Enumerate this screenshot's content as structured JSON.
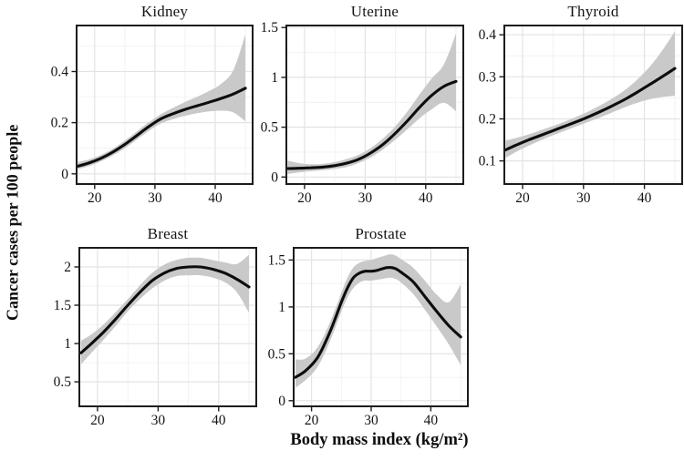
{
  "figure": {
    "ylabel": "Cancer cases per 100 people",
    "xlabel": "Body mass index (kg/m²)"
  },
  "chart_data": {
    "type": "line",
    "description": "Smoothed cancer incidence curves with shaded 95% confidence bands, one panel per cancer site",
    "xlabel": "Body mass index (kg/m²)",
    "ylabel": "Cancer cases per 100 people",
    "grid": true,
    "legend": "none",
    "colors": {
      "line": "#0d0d0d",
      "band": "#c9c9c9",
      "grid_major": "#e3e3e3",
      "grid_minor": "#efefef",
      "border": "#1c1c1c",
      "tick": "#1c1c1c"
    },
    "panels": [
      {
        "key": "kidney",
        "title": "Kidney",
        "xlim": [
          17,
          46.2
        ],
        "ylim": [
          -0.04,
          0.58
        ],
        "xticks": [
          {
            "v": 20,
            "label": "20"
          },
          {
            "v": 30,
            "label": "30"
          },
          {
            "v": 40,
            "label": "40"
          }
        ],
        "yticks": [
          {
            "v": 0,
            "label": "0"
          },
          {
            "v": 0.2,
            "label": "0.2"
          },
          {
            "v": 0.4,
            "label": "0.4"
          }
        ],
        "xminor": [
          25,
          35,
          45
        ],
        "yminor": [
          0.1,
          0.3,
          0.5
        ],
        "series": {
          "x": [
            17.2,
            19,
            21,
            23,
            25,
            27,
            29,
            31,
            33,
            35,
            37,
            39,
            41,
            43,
            45
          ],
          "y": [
            0.03,
            0.042,
            0.06,
            0.085,
            0.115,
            0.15,
            0.185,
            0.215,
            0.235,
            0.252,
            0.266,
            0.28,
            0.295,
            0.312,
            0.335
          ],
          "ci_low": [
            0.018,
            0.03,
            0.048,
            0.072,
            0.1,
            0.134,
            0.168,
            0.197,
            0.214,
            0.227,
            0.237,
            0.244,
            0.247,
            0.24,
            0.205
          ],
          "ci_high": [
            0.046,
            0.056,
            0.073,
            0.098,
            0.13,
            0.166,
            0.202,
            0.233,
            0.258,
            0.281,
            0.301,
            0.324,
            0.352,
            0.405,
            0.545
          ]
        }
      },
      {
        "key": "uterine",
        "title": "Uterine",
        "xlim": [
          17,
          46.2
        ],
        "ylim": [
          -0.07,
          1.52
        ],
        "xticks": [
          {
            "v": 20,
            "label": "20"
          },
          {
            "v": 30,
            "label": "30"
          },
          {
            "v": 40,
            "label": "40"
          }
        ],
        "yticks": [
          {
            "v": 0,
            "label": "0"
          },
          {
            "v": 0.5,
            "label": "0.5"
          },
          {
            "v": 1,
            "label": "1"
          },
          {
            "v": 1.5,
            "label": "1.5"
          }
        ],
        "xminor": [
          25,
          35,
          45
        ],
        "yminor": [
          0.25,
          0.75,
          1.25
        ],
        "series": {
          "x": [
            17.2,
            19,
            21,
            23,
            25,
            27,
            29,
            31,
            33,
            35,
            37,
            39,
            41,
            43,
            45
          ],
          "y": [
            0.085,
            0.088,
            0.093,
            0.1,
            0.115,
            0.14,
            0.18,
            0.245,
            0.33,
            0.44,
            0.565,
            0.7,
            0.82,
            0.91,
            0.96
          ],
          "ci_low": [
            0.03,
            0.046,
            0.058,
            0.068,
            0.082,
            0.102,
            0.142,
            0.2,
            0.28,
            0.375,
            0.48,
            0.59,
            0.68,
            0.745,
            0.66
          ],
          "ci_high": [
            0.165,
            0.14,
            0.128,
            0.132,
            0.15,
            0.182,
            0.225,
            0.295,
            0.39,
            0.51,
            0.66,
            0.83,
            0.99,
            1.13,
            1.44
          ]
        }
      },
      {
        "key": "thyroid",
        "title": "Thyroid",
        "xlim": [
          17,
          46.2
        ],
        "ylim": [
          0.045,
          0.422
        ],
        "xticks": [
          {
            "v": 20,
            "label": "20"
          },
          {
            "v": 30,
            "label": "30"
          },
          {
            "v": 40,
            "label": "40"
          }
        ],
        "yticks": [
          {
            "v": 0.1,
            "label": "0.1"
          },
          {
            "v": 0.2,
            "label": "0.2"
          },
          {
            "v": 0.3,
            "label": "0.3"
          },
          {
            "v": 0.4,
            "label": "0.4"
          }
        ],
        "xminor": [
          25,
          35,
          45
        ],
        "yminor": [
          0.05,
          0.15,
          0.25,
          0.35
        ],
        "series": {
          "x": [
            17.2,
            19,
            21,
            23,
            25,
            27,
            29,
            31,
            33,
            35,
            37,
            39,
            41,
            43,
            45
          ],
          "y": [
            0.126,
            0.138,
            0.15,
            0.161,
            0.172,
            0.183,
            0.194,
            0.206,
            0.219,
            0.233,
            0.248,
            0.265,
            0.283,
            0.301,
            0.32
          ],
          "ci_low": [
            0.107,
            0.122,
            0.136,
            0.149,
            0.161,
            0.172,
            0.183,
            0.194,
            0.205,
            0.217,
            0.229,
            0.239,
            0.247,
            0.252,
            0.255
          ],
          "ci_high": [
            0.148,
            0.155,
            0.163,
            0.173,
            0.183,
            0.194,
            0.206,
            0.219,
            0.234,
            0.251,
            0.271,
            0.296,
            0.326,
            0.364,
            0.408
          ]
        }
      },
      {
        "key": "breast",
        "title": "Breast",
        "xlim": [
          17,
          46.2
        ],
        "ylim": [
          0.18,
          2.25
        ],
        "xticks": [
          {
            "v": 20,
            "label": "20"
          },
          {
            "v": 30,
            "label": "30"
          },
          {
            "v": 40,
            "label": "40"
          }
        ],
        "yticks": [
          {
            "v": 0.5,
            "label": "0.5"
          },
          {
            "v": 1,
            "label": "1"
          },
          {
            "v": 1.5,
            "label": "1.5"
          },
          {
            "v": 2,
            "label": "2"
          }
        ],
        "xminor": [
          25,
          35,
          45
        ],
        "yminor": [
          0.25,
          0.75,
          1.25,
          1.75
        ],
        "series": {
          "x": [
            17.3,
            19,
            21,
            23,
            25,
            27,
            29,
            31,
            33,
            35,
            37,
            39,
            41,
            43,
            45
          ],
          "y": [
            0.88,
            1.0,
            1.15,
            1.32,
            1.5,
            1.67,
            1.82,
            1.92,
            1.98,
            2.0,
            2.0,
            1.97,
            1.92,
            1.84,
            1.74
          ],
          "ci_low": [
            0.73,
            0.88,
            1.05,
            1.23,
            1.42,
            1.58,
            1.72,
            1.82,
            1.88,
            1.89,
            1.89,
            1.86,
            1.8,
            1.67,
            1.4
          ],
          "ci_high": [
            1.04,
            1.12,
            1.25,
            1.41,
            1.58,
            1.76,
            1.92,
            2.03,
            2.09,
            2.12,
            2.12,
            2.09,
            2.06,
            2.04,
            2.16
          ]
        }
      },
      {
        "key": "prostate",
        "title": "Prostate",
        "xlim": [
          17,
          46.2
        ],
        "ylim": [
          -0.06,
          1.63
        ],
        "xticks": [
          {
            "v": 20,
            "label": "20"
          },
          {
            "v": 30,
            "label": "30"
          },
          {
            "v": 40,
            "label": "40"
          }
        ],
        "yticks": [
          {
            "v": 0,
            "label": "0"
          },
          {
            "v": 0.5,
            "label": "0.5"
          },
          {
            "v": 1,
            "label": "1"
          },
          {
            "v": 1.5,
            "label": "1.5"
          }
        ],
        "xminor": [
          25,
          35,
          45
        ],
        "yminor": [
          0.25,
          0.75,
          1.25
        ],
        "series": {
          "x": [
            17.3,
            19,
            21,
            23,
            25,
            26,
            27,
            28,
            29,
            30,
            31,
            32,
            33,
            34,
            35,
            37,
            39,
            41,
            43,
            45
          ],
          "y": [
            0.25,
            0.32,
            0.46,
            0.72,
            1.05,
            1.2,
            1.31,
            1.36,
            1.38,
            1.38,
            1.39,
            1.41,
            1.42,
            1.41,
            1.37,
            1.27,
            1.11,
            0.95,
            0.8,
            0.68
          ],
          "ci_low": [
            0.14,
            0.22,
            0.36,
            0.62,
            0.95,
            1.1,
            1.2,
            1.26,
            1.28,
            1.28,
            1.29,
            1.3,
            1.31,
            1.3,
            1.26,
            1.14,
            0.97,
            0.79,
            0.6,
            0.38
          ],
          "ci_high": [
            0.44,
            0.45,
            0.57,
            0.82,
            1.15,
            1.31,
            1.42,
            1.47,
            1.49,
            1.5,
            1.52,
            1.54,
            1.56,
            1.55,
            1.51,
            1.42,
            1.28,
            1.13,
            1.05,
            1.24
          ]
        }
      }
    ]
  }
}
